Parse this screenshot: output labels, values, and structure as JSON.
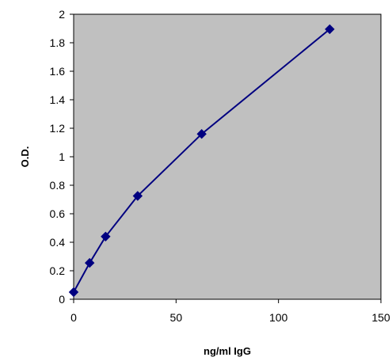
{
  "chart_data": {
    "type": "scatter",
    "title": "",
    "xlabel": "ng/ml IgG",
    "ylabel": "O.D.",
    "xlim": [
      0,
      150
    ],
    "ylim": [
      0,
      2
    ],
    "x_ticks": [
      0,
      50,
      100,
      150
    ],
    "y_ticks": [
      0,
      0.2,
      0.4,
      0.6,
      0.8,
      1,
      1.2,
      1.4,
      1.6,
      1.8,
      2
    ],
    "grid": false,
    "legend": "none",
    "plot_background": "#c0c0c0",
    "series": [
      {
        "marker": "diamond",
        "line": true,
        "color": "#000080",
        "x": [
          0,
          7.8,
          15.6,
          31.25,
          62.5,
          125
        ],
        "y": [
          0.05,
          0.255,
          0.44,
          0.725,
          1.16,
          1.895
        ]
      }
    ]
  }
}
